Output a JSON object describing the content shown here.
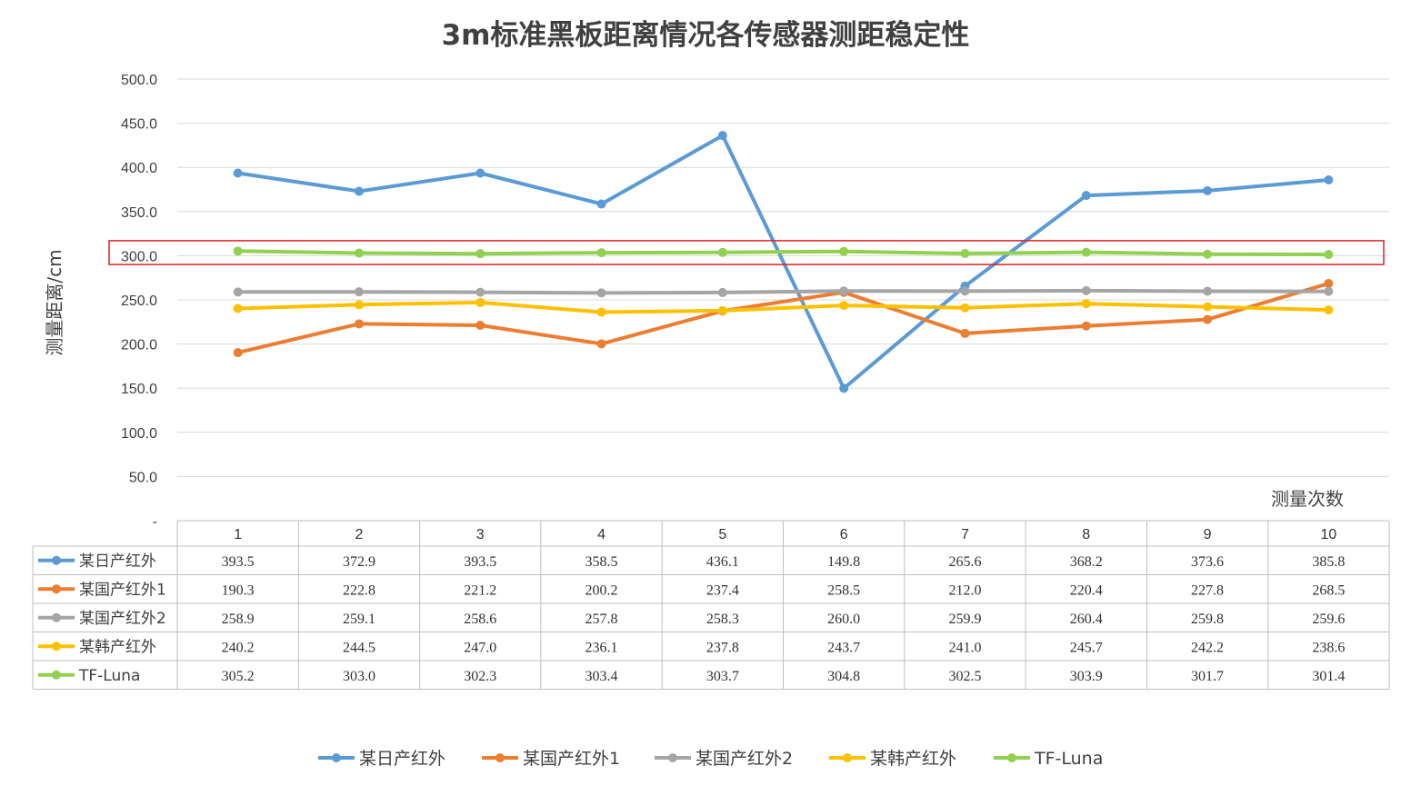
{
  "chart_data": {
    "type": "line",
    "title": "3m标准黑板距离情况各传感器测距稳定性",
    "ylabel": "测量距离/cm",
    "xlabel": "测量次数",
    "ylim": [
      0,
      500
    ],
    "yticks": [
      "-",
      "50.0",
      "100.0",
      "150.0",
      "200.0",
      "250.0",
      "300.0",
      "350.0",
      "400.0",
      "450.0",
      "500.0"
    ],
    "categories": [
      "1",
      "2",
      "3",
      "4",
      "5",
      "6",
      "7",
      "8",
      "9",
      "10"
    ],
    "grid": true,
    "legend_position": "bottom",
    "data_table": true,
    "highlight_box": {
      "y_range": [
        290,
        317
      ],
      "color": "#e02020"
    },
    "series": [
      {
        "name": "某日产红外",
        "color": "#5b9bd5",
        "values": [
          393.5,
          372.9,
          393.5,
          358.5,
          436.1,
          149.8,
          265.6,
          368.2,
          373.6,
          385.8
        ],
        "labels": [
          "393.5",
          "372.9",
          "393.5",
          "358.5",
          "436.1",
          "149.8",
          "265.6",
          "368.2",
          "373.6",
          "385.8"
        ]
      },
      {
        "name": "某国产红外1",
        "color": "#ed7d31",
        "values": [
          190.3,
          222.8,
          221.2,
          200.2,
          237.4,
          258.5,
          212.0,
          220.4,
          227.8,
          268.5
        ],
        "labels": [
          "190.3",
          "222.8",
          "221.2",
          "200.2",
          "237.4",
          "258.5",
          "212.0",
          "220.4",
          "227.8",
          "268.5"
        ]
      },
      {
        "name": "某国产红外2",
        "color": "#a5a5a5",
        "values": [
          258.9,
          259.1,
          258.6,
          257.8,
          258.3,
          260.0,
          259.9,
          260.4,
          259.8,
          259.6
        ],
        "labels": [
          "258.9",
          "259.1",
          "258.6",
          "257.8",
          "258.3",
          "260.0",
          "259.9",
          "260.4",
          "259.8",
          "259.6"
        ]
      },
      {
        "name": "某韩产红外",
        "color": "#ffc000",
        "values": [
          240.2,
          244.5,
          247.0,
          236.1,
          237.8,
          243.7,
          241.0,
          245.7,
          242.2,
          238.6
        ],
        "labels": [
          "240.2",
          "244.5",
          "247.0",
          "236.1",
          "237.8",
          "243.7",
          "241.0",
          "245.7",
          "242.2",
          "238.6"
        ]
      },
      {
        "name": "TF-Luna",
        "color": "#92d050",
        "values": [
          305.2,
          303.0,
          302.3,
          303.4,
          303.7,
          304.8,
          302.5,
          303.9,
          301.7,
          301.4
        ],
        "labels": [
          "305.2",
          "303.0",
          "302.3",
          "303.4",
          "303.7",
          "304.8",
          "302.5",
          "303.9",
          "301.7",
          "301.4"
        ]
      }
    ]
  }
}
